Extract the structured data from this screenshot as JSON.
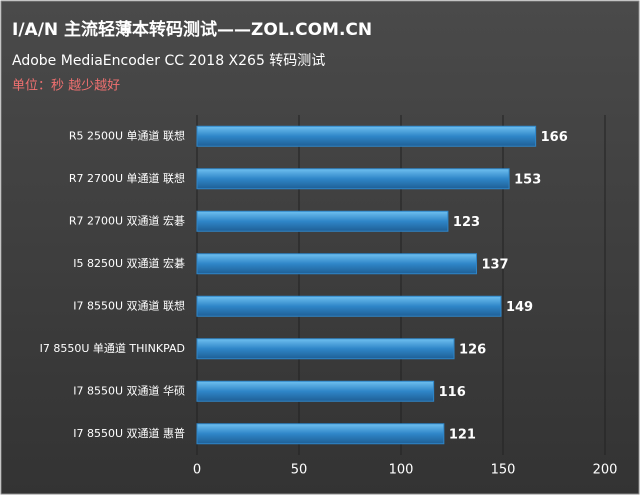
{
  "chart_data": {
    "type": "bar",
    "title": "I/A/N 主流轻薄本转码测试——ZOL.COM.CN",
    "subtitle": "Adobe MediaEncoder CC 2018 X265 转码测试",
    "note": "单位：秒 越少越好",
    "categories": [
      "R5 2500U 单通道 联想",
      "R7 2700U 单通道 联想",
      "R7 2700U 双通道 宏碁",
      "I5 8250U 双通道 宏碁",
      "I7 8550U 双通道 联想",
      "I7 8550U 单通道 THINKPAD",
      "I7 8550U 双通道 华硕",
      "I7 8550U 双通道 惠普"
    ],
    "values": [
      166,
      153,
      123,
      137,
      149,
      126,
      116,
      121
    ],
    "color": "#2f86c8",
    "xlim": [
      0,
      200
    ],
    "xticks": [
      0,
      50,
      100,
      150,
      200
    ],
    "grid": true
  }
}
